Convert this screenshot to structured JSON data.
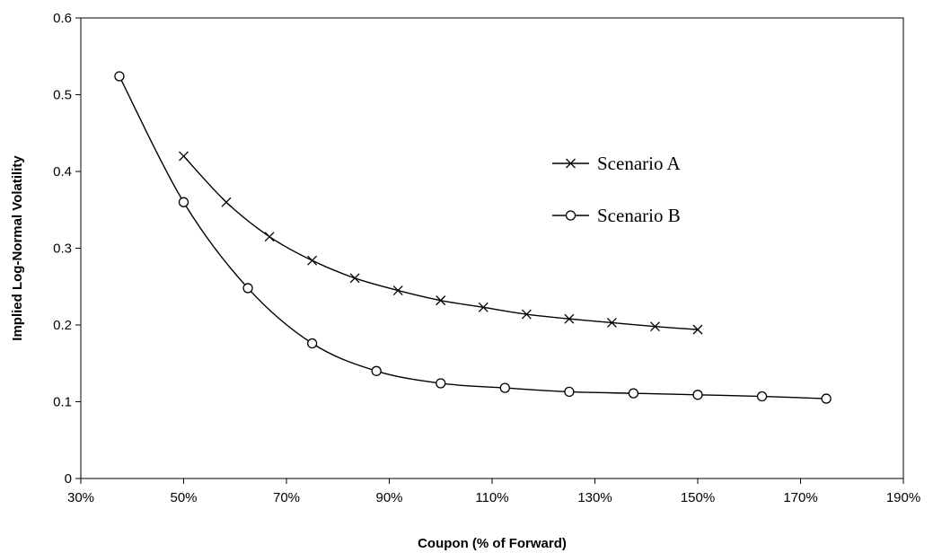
{
  "chart_data": {
    "type": "line",
    "title": "",
    "xlabel": "Coupon (% of Forward)",
    "ylabel": "Implied Log-Normal Volatility",
    "xlim": [
      30,
      190
    ],
    "ylim": [
      0,
      0.6
    ],
    "x_ticks": [
      "30%",
      "50%",
      "70%",
      "90%",
      "110%",
      "130%",
      "150%",
      "170%",
      "190%"
    ],
    "y_ticks": [
      "0",
      "0.1",
      "0.2",
      "0.3",
      "0.4",
      "0.5",
      "0.6"
    ],
    "grid": false,
    "legend_position": "right",
    "series": [
      {
        "name": "Scenario A",
        "marker": "x",
        "color": "#000000",
        "x": [
          50,
          58.3,
          66.7,
          75,
          83.3,
          91.7,
          100,
          108.3,
          116.7,
          125,
          133.3,
          141.7,
          150
        ],
        "y": [
          0.42,
          0.36,
          0.315,
          0.284,
          0.261,
          0.245,
          0.232,
          0.223,
          0.214,
          0.208,
          0.203,
          0.198,
          0.194
        ]
      },
      {
        "name": "Scenario B",
        "marker": "circle",
        "color": "#000000",
        "x": [
          37.5,
          50,
          62.5,
          75,
          87.5,
          100,
          112.5,
          125,
          137.5,
          150,
          162.5,
          175
        ],
        "y": [
          0.524,
          0.36,
          0.248,
          0.176,
          0.14,
          0.124,
          0.118,
          0.113,
          0.111,
          0.109,
          0.107,
          0.104
        ]
      }
    ]
  }
}
